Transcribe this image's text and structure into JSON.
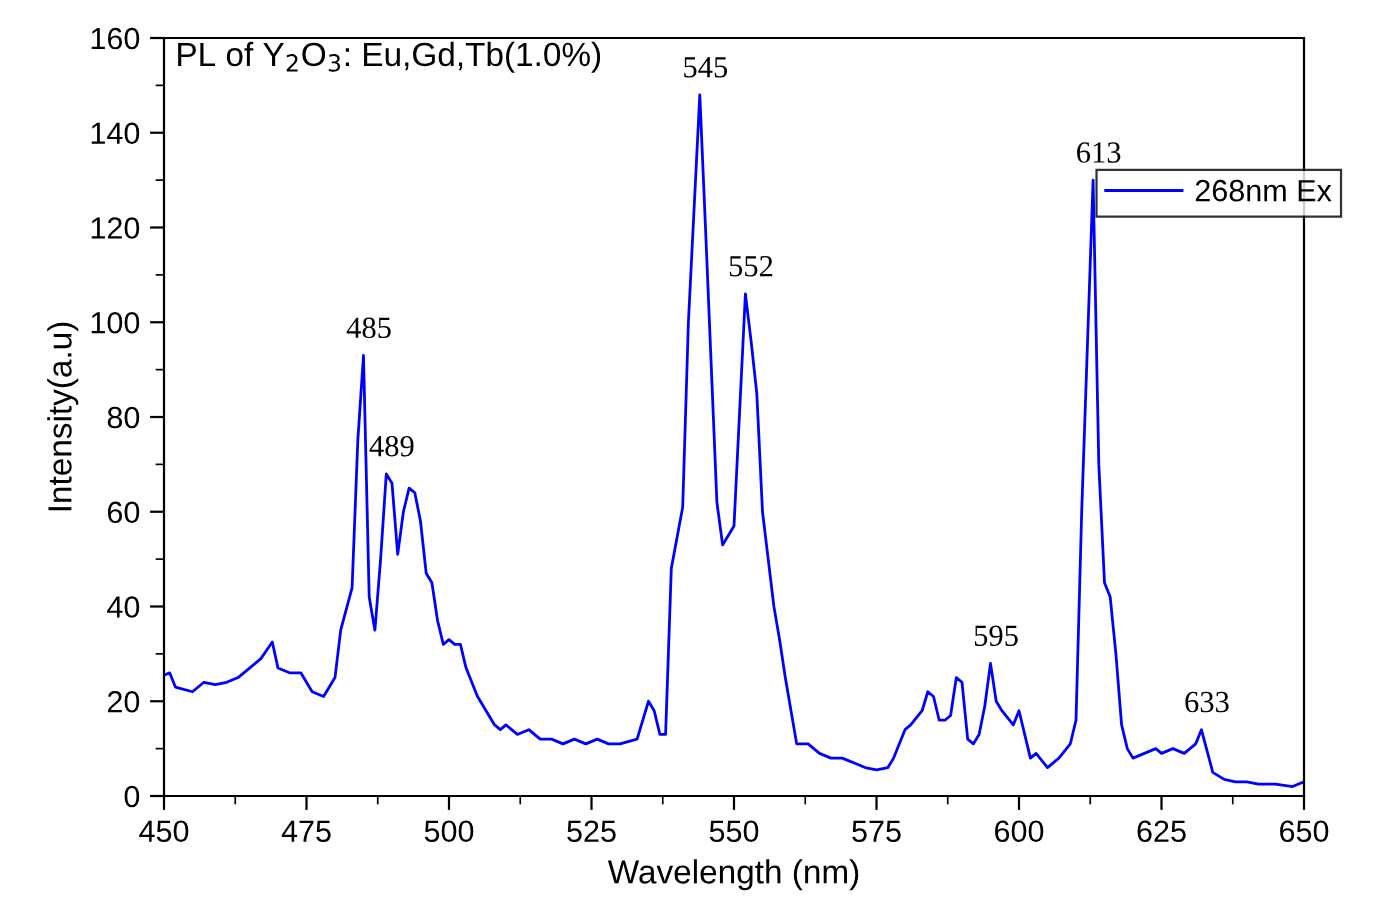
{
  "chart_data": {
    "type": "line",
    "title": "PL of Y$_{2}$O$_{3}$: Eu,Gd,Tb(1.0%)",
    "xlabel": "Wavelength (nm)",
    "ylabel": "Intensity(a.u)",
    "series": [
      {
        "name": "268nm Ex",
        "color": "#0000ff",
        "x": [
          450,
          451,
          452,
          455,
          457,
          459,
          461,
          463,
          465,
          467,
          469,
          470,
          472,
          474,
          476,
          478,
          480,
          481,
          483,
          484,
          485,
          486,
          487,
          488,
          489,
          490,
          491,
          492,
          493,
          494,
          495,
          496,
          497,
          498,
          499,
          500,
          501,
          502,
          503,
          505,
          507,
          508,
          509,
          510,
          512,
          514,
          516,
          518,
          520,
          522,
          524,
          526,
          528,
          530,
          533,
          535,
          536,
          537,
          538,
          539,
          541,
          542,
          544,
          545,
          547,
          548,
          550,
          552,
          553,
          554,
          555,
          556,
          557,
          558,
          559,
          560,
          561,
          562,
          563,
          565,
          567,
          569,
          571,
          573,
          575,
          577,
          578,
          580,
          581,
          583,
          584,
          585,
          586,
          587,
          588,
          589,
          590,
          591,
          592,
          593,
          594,
          595,
          596,
          597,
          599,
          600,
          601,
          602,
          603,
          605,
          607,
          609,
          610,
          611,
          613,
          614,
          615,
          616,
          617,
          618,
          619,
          620,
          622,
          624,
          625,
          627,
          629,
          631,
          632,
          634,
          636,
          638,
          640,
          642,
          645,
          648,
          650
        ],
        "values": [
          25.5,
          26,
          23,
          22,
          24,
          23.5,
          24,
          25,
          27,
          29,
          32.5,
          27,
          26,
          26,
          22,
          21,
          25,
          35,
          44,
          75,
          93,
          42,
          35,
          50,
          68,
          66,
          51,
          60,
          65,
          64,
          58,
          47,
          45,
          37,
          32,
          33,
          32,
          32,
          27,
          21,
          17,
          15,
          14,
          15,
          13,
          14,
          12,
          12,
          11,
          12,
          11,
          12,
          11,
          11,
          12,
          20,
          18,
          13,
          13,
          48,
          61,
          100,
          148,
          120,
          62,
          53,
          57,
          106,
          96,
          85,
          60,
          50,
          40,
          33,
          25,
          18,
          11,
          11,
          11,
          9,
          8,
          8,
          7,
          6,
          5.5,
          6,
          8,
          14,
          15,
          18,
          22,
          21,
          16,
          16,
          17,
          25,
          24,
          12,
          11,
          13,
          19,
          28,
          20,
          18,
          15,
          18,
          13,
          8,
          9,
          6,
          8,
          11,
          16,
          60,
          130,
          70,
          45,
          42,
          30,
          15,
          10,
          8,
          9,
          10,
          9,
          10,
          9,
          11,
          14,
          5,
          3.5,
          3,
          3,
          2.5,
          2.5,
          2,
          3
        ]
      }
    ],
    "annotations": [
      {
        "text": "485",
        "x": 485,
        "y": 93
      },
      {
        "text": "489",
        "x": 489,
        "y": 68
      },
      {
        "text": "545",
        "x": 544,
        "y": 148
      },
      {
        "text": "552",
        "x": 552,
        "y": 106
      },
      {
        "text": "595",
        "x": 595,
        "y": 28
      },
      {
        "text": "613",
        "x": 613,
        "y": 130
      },
      {
        "text": "633",
        "x": 632,
        "y": 14
      }
    ],
    "xlim": [
      450,
      650
    ],
    "xticks": [
      450,
      475,
      500,
      525,
      550,
      575,
      600,
      625,
      650
    ],
    "ylim": [
      0,
      160
    ],
    "yticks": [
      0,
      20,
      40,
      60,
      80,
      100,
      120,
      140,
      160
    ],
    "grid": false,
    "legend": "top right",
    "marker": "none",
    "line_style": "solid"
  }
}
